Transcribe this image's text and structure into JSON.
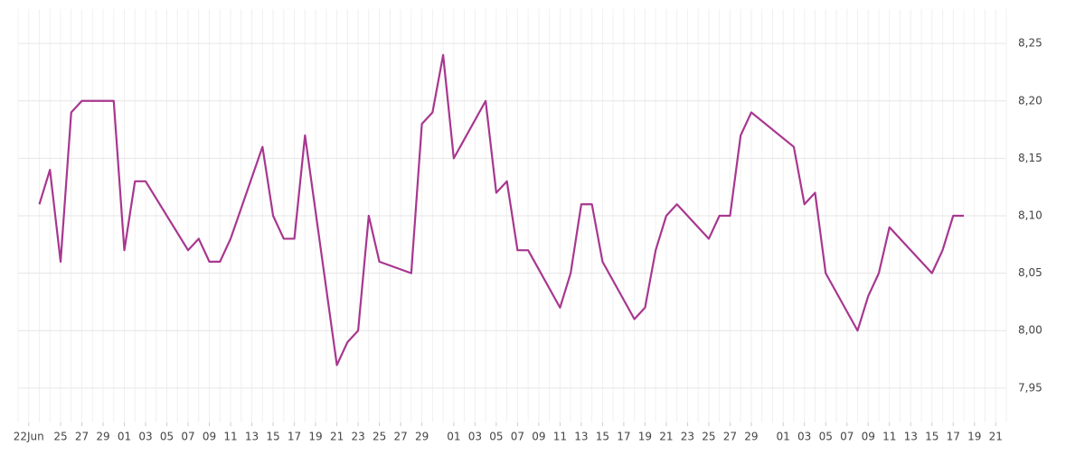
{
  "chart_data": {
    "type": "line",
    "x": [
      "06-23",
      "06-24",
      "06-25",
      "06-26",
      "06-27",
      "06-28",
      "06-29",
      "06-30",
      "07-01",
      "07-02",
      "07-03",
      "07-07",
      "07-08",
      "07-09",
      "07-10",
      "07-11",
      "07-14",
      "07-15",
      "07-16",
      "07-17",
      "07-18",
      "07-21",
      "07-22",
      "07-23",
      "07-24",
      "07-25",
      "07-28",
      "07-29",
      "07-30",
      "07-31",
      "08-01",
      "08-04",
      "08-05",
      "08-06",
      "08-07",
      "08-08",
      "08-11",
      "08-12",
      "08-13",
      "08-14",
      "08-15",
      "08-18",
      "08-19",
      "08-20",
      "08-21",
      "08-22",
      "08-25",
      "08-26",
      "08-27",
      "08-28",
      "08-29",
      "09-02",
      "09-03",
      "09-04",
      "09-05",
      "09-08",
      "09-09",
      "09-10",
      "09-11",
      "09-15",
      "09-16",
      "09-17",
      "09-18"
    ],
    "series": [
      {
        "color": "#a8378f",
        "values": [
          8.11,
          8.14,
          8.06,
          8.19,
          8.2,
          8.2,
          8.2,
          8.2,
          8.07,
          8.13,
          8.13,
          8.07,
          8.08,
          8.06,
          8.06,
          8.08,
          8.16,
          8.1,
          8.08,
          8.08,
          8.17,
          7.97,
          7.99,
          8.0,
          8.1,
          8.06,
          8.05,
          8.18,
          8.19,
          8.24,
          8.15,
          8.2,
          8.12,
          8.13,
          8.07,
          8.07,
          8.02,
          8.05,
          8.11,
          8.11,
          8.06,
          8.01,
          8.02,
          8.07,
          8.1,
          8.11,
          8.08,
          8.1,
          8.1,
          8.17,
          8.19,
          8.16,
          8.11,
          8.12,
          8.05,
          8.0,
          8.03,
          8.05,
          8.09,
          8.05,
          8.07,
          8.1,
          8.1
        ]
      }
    ],
    "xlim": [
      "06-21",
      "09-22"
    ],
    "xticks": [
      {
        "value": "06-22",
        "label": "22Jun"
      },
      {
        "value": "06-25",
        "label": "25"
      },
      {
        "value": "06-27",
        "label": "27"
      },
      {
        "value": "06-29",
        "label": "29"
      },
      {
        "value": "07-01",
        "label": "01"
      },
      {
        "value": "07-03",
        "label": "03"
      },
      {
        "value": "07-05",
        "label": "05"
      },
      {
        "value": "07-07",
        "label": "07"
      },
      {
        "value": "07-09",
        "label": "09"
      },
      {
        "value": "07-11",
        "label": "11"
      },
      {
        "value": "07-13",
        "label": "13"
      },
      {
        "value": "07-15",
        "label": "15"
      },
      {
        "value": "07-17",
        "label": "17"
      },
      {
        "value": "07-19",
        "label": "19"
      },
      {
        "value": "07-21",
        "label": "21"
      },
      {
        "value": "07-23",
        "label": "23"
      },
      {
        "value": "07-25",
        "label": "25"
      },
      {
        "value": "07-27",
        "label": "27"
      },
      {
        "value": "07-29",
        "label": "29"
      },
      {
        "value": "08-01",
        "label": "01"
      },
      {
        "value": "08-03",
        "label": "03"
      },
      {
        "value": "08-05",
        "label": "05"
      },
      {
        "value": "08-07",
        "label": "07"
      },
      {
        "value": "08-09",
        "label": "09"
      },
      {
        "value": "08-11",
        "label": "11"
      },
      {
        "value": "08-13",
        "label": "13"
      },
      {
        "value": "08-15",
        "label": "15"
      },
      {
        "value": "08-17",
        "label": "17"
      },
      {
        "value": "08-19",
        "label": "19"
      },
      {
        "value": "08-21",
        "label": "21"
      },
      {
        "value": "08-23",
        "label": "23"
      },
      {
        "value": "08-25",
        "label": "25"
      },
      {
        "value": "08-27",
        "label": "27"
      },
      {
        "value": "08-29",
        "label": "29"
      },
      {
        "value": "09-01",
        "label": "01"
      },
      {
        "value": "09-03",
        "label": "03"
      },
      {
        "value": "09-05",
        "label": "05"
      },
      {
        "value": "09-07",
        "label": "07"
      },
      {
        "value": "09-09",
        "label": "09"
      },
      {
        "value": "09-11",
        "label": "11"
      },
      {
        "value": "09-13",
        "label": "13"
      },
      {
        "value": "09-15",
        "label": "15"
      },
      {
        "value": "09-17",
        "label": "17"
      },
      {
        "value": "09-19",
        "label": "19"
      },
      {
        "value": "09-21",
        "label": "21"
      }
    ],
    "ylim": [
      7.92,
      8.28
    ],
    "yticks": [
      {
        "value": 7.95,
        "label": "7,95"
      },
      {
        "value": 8.0,
        "label": "8,00"
      },
      {
        "value": 8.05,
        "label": "8,05"
      },
      {
        "value": 8.1,
        "label": "8,10"
      },
      {
        "value": 8.15,
        "label": "8,15"
      },
      {
        "value": 8.2,
        "label": "8,20"
      },
      {
        "value": 8.25,
        "label": "8,25"
      }
    ],
    "grid": true
  }
}
